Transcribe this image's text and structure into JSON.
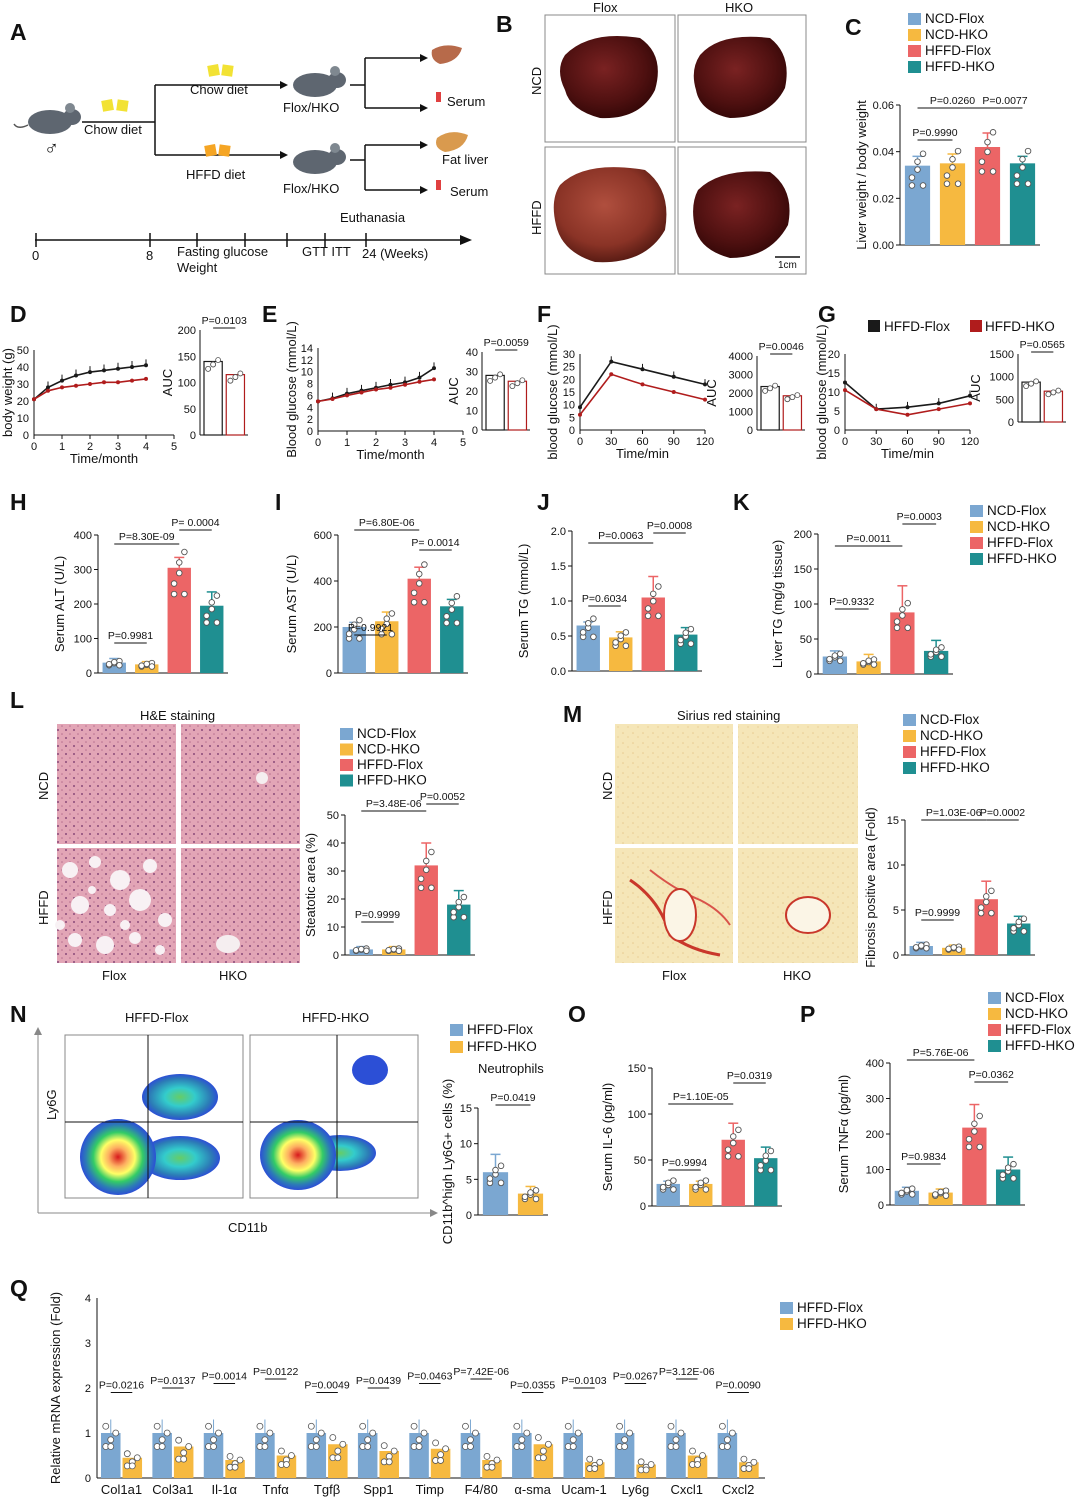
{
  "colors": {
    "ncd_flox": "#7ba7d1",
    "ncd_hko": "#f6b940",
    "hffd_flox": "#ec6566",
    "hffd_hko": "#1f8f91",
    "line_flox": "#1a1a1a",
    "line_hko": "#b01c1c"
  },
  "panel_letters": [
    "A",
    "B",
    "C",
    "D",
    "E",
    "F",
    "G",
    "H",
    "I",
    "J",
    "K",
    "L",
    "M",
    "N",
    "O",
    "P",
    "Q"
  ],
  "legend4": [
    "NCD-Flox",
    "NCD-HKO",
    "HFFD-Flox",
    "HFFD-HKO"
  ],
  "legend2": [
    "HFFD-Flox",
    "HFFD-HKO"
  ],
  "panel_a": {
    "chow_diet": "Chow diet",
    "chow_diet2": "Chow diet",
    "hffd_diet": "HFFD diet",
    "genotype1": "Flox/HKO",
    "genotype2": "Flox/HKO",
    "serum1": "Serum",
    "fat_liver": "Fat liver",
    "serum2": "Serum",
    "euthanasia": "Euthanasia",
    "fasting": "Fasting glucose",
    "weight": "Weight",
    "gtt_itt": "GTT ITT",
    "weeks": "24 (Weeks)",
    "t0": "0",
    "t8": "8",
    "male_icon": "male-symbol-icon"
  },
  "panel_b": {
    "col1": "Flox",
    "col2": "HKO",
    "row1": "NCD",
    "row2": "HFFD",
    "scale": "1cm"
  },
  "panel_l": {
    "title": "H&E staining",
    "row1": "NCD",
    "row2": "HFFD",
    "col1": "Flox",
    "col2": "HKO"
  },
  "panel_m": {
    "title": "Sirius red staining",
    "row1": "NCD",
    "row2": "HFFD",
    "col1": "Flox",
    "col2": "HKO"
  },
  "panel_n": {
    "col1": "HFFD-Flox",
    "col2": "HFFD-HKO",
    "xlab": "CD11b",
    "ylab": "Ly6G",
    "sub": "Neutrophils"
  },
  "chart_data": [
    {
      "id": "C",
      "type": "bar",
      "ylabel": "Liver weight / body weight",
      "ylim": [
        0,
        0.06
      ],
      "ticks": [
        "0.00",
        "0.02",
        "0.04",
        "0.06"
      ],
      "values": [
        0.034,
        0.035,
        0.042,
        0.035
      ],
      "errors": [
        0.004,
        0.004,
        0.006,
        0.003
      ],
      "comparisons": [
        {
          "a": 0,
          "b": 1,
          "p": "P=0.9990"
        },
        {
          "a": 0,
          "b": 2,
          "p": "P=0.0260"
        },
        {
          "a": 2,
          "b": 3,
          "p": "P=0.0077"
        }
      ]
    },
    {
      "id": "D",
      "type": "line",
      "ylabel": "body weight (g)",
      "xlabel": "Time/month",
      "xticks": [
        "0",
        "1",
        "2",
        "3",
        "4",
        "5"
      ],
      "yticks": [
        "0",
        "10",
        "20",
        "30",
        "40",
        "50"
      ],
      "x": [
        0,
        0.5,
        1,
        1.5,
        2,
        2.5,
        3,
        3.5,
        4
      ],
      "series": [
        {
          "values": [
            21,
            28,
            32,
            35,
            37,
            38,
            39,
            40,
            41
          ]
        },
        {
          "values": [
            21,
            26,
            28,
            29,
            30,
            31,
            31,
            32,
            33
          ]
        }
      ],
      "ylim": [
        0,
        50
      ],
      "xlim": [
        0,
        5
      ],
      "auc": {
        "ylabel": "AUC",
        "ticks": [
          "0",
          "50",
          "100",
          "150",
          "200"
        ],
        "ylim": [
          0,
          200
        ],
        "values": [
          140,
          115
        ],
        "p": "P=0.0103"
      }
    },
    {
      "id": "E",
      "type": "line",
      "ylabel": "Blood glucose (mmol/L)",
      "xlabel": "Time/month",
      "xticks": [
        "0",
        "1",
        "2",
        "3",
        "4",
        "5"
      ],
      "yticks": [
        "0",
        "2",
        "4",
        "6",
        "8",
        "10",
        "12",
        "14"
      ],
      "x": [
        0,
        0.5,
        1,
        1.5,
        2,
        2.5,
        3,
        3.5,
        4
      ],
      "series": [
        {
          "values": [
            5,
            5.5,
            6.3,
            6.8,
            7.3,
            7.8,
            8.2,
            9,
            10.6
          ]
        },
        {
          "values": [
            5,
            5.4,
            6,
            6.5,
            7,
            7.3,
            7.8,
            8.3,
            8.7
          ]
        }
      ],
      "ylim": [
        0,
        14
      ],
      "xlim": [
        0,
        5
      ],
      "auc": {
        "ylabel": "AUC",
        "ticks": [
          "0",
          "10",
          "20",
          "30",
          "40"
        ],
        "ylim": [
          0,
          40
        ],
        "values": [
          28,
          25
        ],
        "p": "P=0.0059"
      }
    },
    {
      "id": "F",
      "type": "line",
      "ylabel": "blood glucose (mmol/L)",
      "xlabel": "Time/min",
      "xticks": [
        "0",
        "30",
        "60",
        "90",
        "120"
      ],
      "yticks": [
        "0",
        "5",
        "10",
        "15",
        "20",
        "25",
        "30"
      ],
      "x": [
        0,
        30,
        60,
        90,
        120
      ],
      "series": [
        {
          "values": [
            9,
            27,
            24,
            21,
            18
          ]
        },
        {
          "values": [
            6,
            22,
            18,
            15,
            12
          ]
        }
      ],
      "ylim": [
        0,
        30
      ],
      "xlim": [
        0,
        120
      ],
      "auc": {
        "ylabel": "AUC",
        "ticks": [
          "0",
          "1000",
          "2000",
          "3000",
          "4000"
        ],
        "ylim": [
          0,
          4000
        ],
        "values": [
          2350,
          1850
        ],
        "p": "P=0.0046"
      }
    },
    {
      "id": "G",
      "type": "line",
      "ylabel": "blood glucose (mmol/L)",
      "xlabel": "Time/min",
      "xticks": [
        "0",
        "30",
        "60",
        "90",
        "120"
      ],
      "yticks": [
        "0",
        "5",
        "10",
        "15",
        "20"
      ],
      "x": [
        0,
        30,
        60,
        90,
        120
      ],
      "series": [
        {
          "name": "HFFD-Flox",
          "values": [
            12.5,
            5.5,
            6,
            7,
            9
          ]
        },
        {
          "name": "HFFD-HKO",
          "values": [
            10.5,
            5.5,
            4,
            5.5,
            7
          ]
        }
      ],
      "ylim": [
        0,
        20
      ],
      "xlim": [
        0,
        120
      ],
      "auc": {
        "ylabel": "AUC",
        "ticks": [
          "0",
          "500",
          "1000",
          "1500"
        ],
        "ylim": [
          0,
          1500
        ],
        "values": [
          880,
          680
        ],
        "p": "P=0.0565"
      }
    },
    {
      "id": "H",
      "type": "bar",
      "ylabel": "Serum ALT (U/L)",
      "ylim": [
        0,
        400
      ],
      "ticks": [
        "0",
        "100",
        "200",
        "300",
        "400"
      ],
      "values": [
        30,
        25,
        305,
        195
      ],
      "errors": [
        12,
        8,
        30,
        40
      ],
      "comparisons": [
        {
          "a": 0,
          "b": 1,
          "p": "P=0.9981"
        },
        {
          "a": 0,
          "b": 2,
          "p": "P=8.30E-09"
        },
        {
          "a": 2,
          "b": 3,
          "p": "P= 0.0004"
        }
      ]
    },
    {
      "id": "I",
      "type": "bar",
      "ylabel": "Serum AST (U/L)",
      "ylim": [
        0,
        600
      ],
      "ticks": [
        "0",
        "200",
        "400",
        "600"
      ],
      "values": [
        200,
        225,
        410,
        290
      ],
      "errors": [
        20,
        40,
        50,
        30
      ],
      "comparisons": [
        {
          "a": 0,
          "b": 1,
          "p": "P=0.9921"
        },
        {
          "a": 0,
          "b": 2,
          "p": "P=6.80E-06"
        },
        {
          "a": 2,
          "b": 3,
          "p": "P= 0.0014"
        }
      ]
    },
    {
      "id": "J",
      "type": "bar",
      "ylabel": "Serum TG (mmol/L)",
      "ylim": [
        0,
        2.0
      ],
      "ticks": [
        "0.0",
        "0.5",
        "1.0",
        "1.5",
        "2.0"
      ],
      "values": [
        0.65,
        0.48,
        1.05,
        0.52
      ],
      "errors": [
        0.05,
        0.08,
        0.3,
        0.1
      ],
      "comparisons": [
        {
          "a": 0,
          "b": 1,
          "p": "P=0.6034"
        },
        {
          "a": 0,
          "b": 2,
          "p": "P=0.0063"
        },
        {
          "a": 2,
          "b": 3,
          "p": "P=0.0008"
        }
      ]
    },
    {
      "id": "K",
      "type": "bar",
      "ylabel": "Liver TG (mg/g tissue)",
      "ylim": [
        0,
        200
      ],
      "ticks": [
        "0",
        "50",
        "100",
        "150",
        "200"
      ],
      "values": [
        25,
        18,
        88,
        33
      ],
      "errors": [
        8,
        10,
        38,
        15
      ],
      "comparisons": [
        {
          "a": 0,
          "b": 1,
          "p": "P=0.9332"
        },
        {
          "a": 0,
          "b": 2,
          "p": "P=0.0011"
        },
        {
          "a": 2,
          "b": 3,
          "p": "P=0.0003"
        }
      ]
    },
    {
      "id": "L",
      "type": "bar",
      "ylabel": "Steatotic area (%)",
      "ylim": [
        0,
        50
      ],
      "ticks": [
        "0",
        "10",
        "20",
        "30",
        "40",
        "50"
      ],
      "values": [
        2,
        2,
        32,
        18
      ],
      "errors": [
        1,
        1,
        8,
        5
      ],
      "comparisons": [
        {
          "a": 0,
          "b": 1,
          "p": "P=0.9999"
        },
        {
          "a": 0,
          "b": 2,
          "p": "P=3.48E-06"
        },
        {
          "a": 2,
          "b": 3,
          "p": "P=0.0052"
        }
      ]
    },
    {
      "id": "M",
      "type": "bar",
      "ylabel": "Fibrosis positive area (Fold)",
      "ylim": [
        0,
        15
      ],
      "ticks": [
        "0",
        "5",
        "10",
        "15"
      ],
      "values": [
        1,
        0.8,
        6.2,
        3.5
      ],
      "errors": [
        0.4,
        0.3,
        2,
        0.8
      ],
      "comparisons": [
        {
          "a": 0,
          "b": 1,
          "p": "P=0.9999"
        },
        {
          "a": 0,
          "b": 2,
          "p": "P=1.03E-06"
        },
        {
          "a": 2,
          "b": 3,
          "p": "P=0.0002"
        }
      ]
    },
    {
      "id": "N",
      "type": "bar",
      "ylabel": "CD11b^high Ly6G+ cells (%)",
      "ylim": [
        0,
        15
      ],
      "ticks": [
        "0",
        "5",
        "10",
        "15"
      ],
      "values": [
        6,
        3
      ],
      "errors": [
        2.5,
        1
      ],
      "comparisons": [
        {
          "a": 0,
          "b": 1,
          "p": "P=0.0419"
        }
      ]
    },
    {
      "id": "O",
      "type": "bar",
      "ylabel": "Serum IL-6 (pg/ml)",
      "ylim": [
        0,
        150
      ],
      "ticks": [
        "0",
        "50",
        "100",
        "150"
      ],
      "values": [
        24,
        24,
        72,
        52
      ],
      "errors": [
        3,
        3,
        18,
        12
      ],
      "comparisons": [
        {
          "a": 0,
          "b": 1,
          "p": "P=0.9994"
        },
        {
          "a": 0,
          "b": 2,
          "p": "P=1.10E-05"
        },
        {
          "a": 2,
          "b": 3,
          "p": "P=0.0319"
        }
      ]
    },
    {
      "id": "P",
      "type": "bar",
      "ylabel": "Serum TNFα (pg/ml)",
      "ylim": [
        0,
        400
      ],
      "ticks": [
        "0",
        "100",
        "200",
        "300",
        "400"
      ],
      "values": [
        40,
        35,
        218,
        100
      ],
      "errors": [
        10,
        10,
        65,
        35
      ],
      "comparisons": [
        {
          "a": 0,
          "b": 1,
          "p": "P=0.9834"
        },
        {
          "a": 0,
          "b": 2,
          "p": "P=5.76E-06"
        },
        {
          "a": 2,
          "b": 3,
          "p": "P=0.0362"
        }
      ]
    },
    {
      "id": "Q",
      "type": "bar",
      "ylabel": "Relative mRNA expression (Fold)",
      "ylim": [
        0,
        4
      ],
      "ticks": [
        "0",
        "1",
        "2",
        "3",
        "4"
      ],
      "categories": [
        "Col1a1",
        "Col3a1",
        "Il-1α",
        "Tnfα",
        "Tgfβ",
        "Spp1",
        "Timp",
        "F4/80",
        "α-sma",
        "Ucam-1",
        "Ly6g",
        "Cxcl1",
        "Cxcl2"
      ],
      "series": [
        {
          "name": "HFFD-Flox",
          "values": [
            1,
            1,
            1,
            1,
            1,
            1,
            1,
            1,
            1,
            1,
            1,
            1,
            1
          ]
        },
        {
          "name": "HFFD-HKO",
          "values": [
            0.45,
            0.7,
            0.4,
            0.5,
            0.75,
            0.6,
            0.65,
            0.4,
            0.75,
            0.35,
            0.3,
            0.5,
            0.35
          ]
        }
      ],
      "pvalues": [
        "P=0.0216",
        "P=0.0137",
        "P=0.0014",
        "P=0.0122",
        "P=0.0049",
        "P=0.0439",
        "P=0.0463",
        "P=7.42E-06",
        "P=0.0355",
        "P=0.0103",
        "P=0.0267",
        "P=3.12E-06",
        "P=0.0090"
      ]
    }
  ]
}
